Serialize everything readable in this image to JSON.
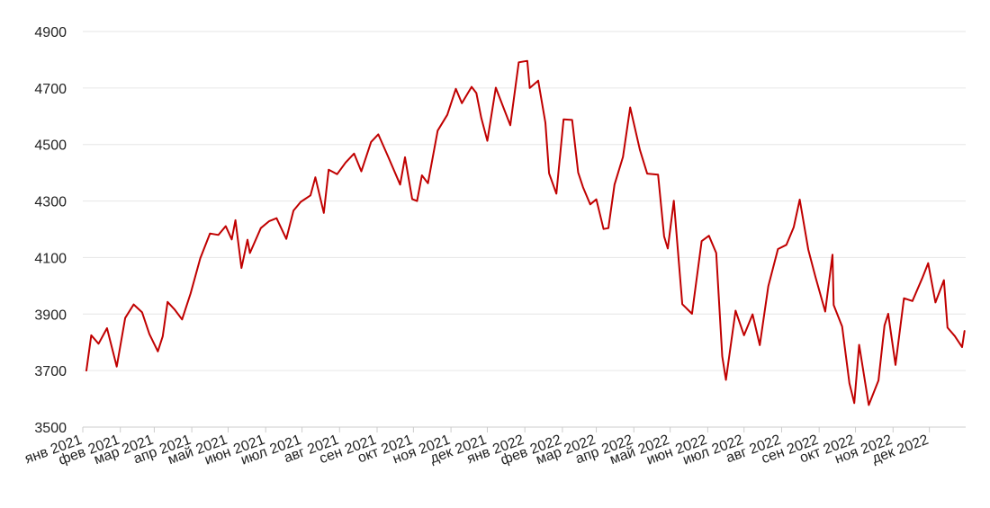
{
  "chart_data": {
    "type": "line",
    "title": "",
    "xlabel": "",
    "ylabel": "",
    "ylim": [
      3500,
      4900
    ],
    "yticks": [
      3500,
      3700,
      3900,
      4100,
      4300,
      4500,
      4700,
      4900
    ],
    "ytick_labels": [
      "3500",
      "3700",
      "3900",
      "4100",
      "4300",
      "4500",
      "4700",
      "4900"
    ],
    "xlim": [
      "2021-01-01",
      "2022-12-31"
    ],
    "xticks": [
      "2021-01-01",
      "2021-02-01",
      "2021-03-01",
      "2021-04-01",
      "2021-05-01",
      "2021-06-01",
      "2021-07-01",
      "2021-08-01",
      "2021-09-01",
      "2021-10-01",
      "2021-11-01",
      "2021-12-01",
      "2022-01-01",
      "2022-02-01",
      "2022-03-01",
      "2022-04-01",
      "2022-05-01",
      "2022-06-01",
      "2022-07-01",
      "2022-08-01",
      "2022-09-01",
      "2022-10-01",
      "2022-11-01",
      "2022-12-01"
    ],
    "xtick_labels": [
      "янв 2021",
      "фев 2021",
      "мар 2021",
      "апр 2021",
      "май 2021",
      "июн 2021",
      "июл 2021",
      "авг 2021",
      "сен 2021",
      "окт 2021",
      "ноя 2021",
      "дек 2021",
      "янв 2022",
      "фев 2022",
      "мар 2022",
      "апр 2022",
      "май 2022",
      "июн 2022",
      "июл 2022",
      "авг 2022",
      "сен 2022",
      "окт 2022",
      "ноя 2022",
      "дек 2022"
    ],
    "grid": true,
    "colors": {
      "line": "#c00000",
      "grid": "#e6e6e6",
      "axis": "#cccccc",
      "text": "#222222"
    },
    "series": [
      {
        "points": [
          [
            "2021-01-04",
            3700
          ],
          [
            "2021-01-08",
            3825
          ],
          [
            "2021-01-14",
            3795
          ],
          [
            "2021-01-21",
            3850
          ],
          [
            "2021-01-29",
            3714
          ],
          [
            "2021-02-05",
            3886
          ],
          [
            "2021-02-12",
            3934
          ],
          [
            "2021-02-19",
            3906
          ],
          [
            "2021-02-25",
            3829
          ],
          [
            "2021-03-04",
            3768
          ],
          [
            "2021-03-08",
            3821
          ],
          [
            "2021-03-12",
            3943
          ],
          [
            "2021-03-18",
            3915
          ],
          [
            "2021-03-24",
            3881
          ],
          [
            "2021-03-31",
            3973
          ],
          [
            "2021-04-08",
            4097
          ],
          [
            "2021-04-16",
            4185
          ],
          [
            "2021-04-23",
            4180
          ],
          [
            "2021-04-29",
            4211
          ],
          [
            "2021-05-04",
            4164
          ],
          [
            "2021-05-07",
            4232
          ],
          [
            "2021-05-12",
            4063
          ],
          [
            "2021-05-17",
            4163
          ],
          [
            "2021-05-19",
            4116
          ],
          [
            "2021-05-28",
            4204
          ],
          [
            "2021-06-04",
            4229
          ],
          [
            "2021-06-10",
            4239
          ],
          [
            "2021-06-18",
            4166
          ],
          [
            "2021-06-24",
            4266
          ],
          [
            "2021-06-30",
            4297
          ],
          [
            "2021-07-08",
            4320
          ],
          [
            "2021-07-12",
            4384
          ],
          [
            "2021-07-19",
            4258
          ],
          [
            "2021-07-23",
            4411
          ],
          [
            "2021-07-30",
            4395
          ],
          [
            "2021-08-06",
            4436
          ],
          [
            "2021-08-13",
            4468
          ],
          [
            "2021-08-19",
            4405
          ],
          [
            "2021-08-27",
            4509
          ],
          [
            "2021-09-02",
            4536
          ],
          [
            "2021-09-10",
            4458
          ],
          [
            "2021-09-20",
            4358
          ],
          [
            "2021-09-24",
            4455
          ],
          [
            "2021-09-30",
            4307
          ],
          [
            "2021-10-04",
            4300
          ],
          [
            "2021-10-08",
            4391
          ],
          [
            "2021-10-13",
            4363
          ],
          [
            "2021-10-21",
            4549
          ],
          [
            "2021-10-29",
            4605
          ],
          [
            "2021-11-05",
            4697
          ],
          [
            "2021-11-10",
            4646
          ],
          [
            "2021-11-18",
            4704
          ],
          [
            "2021-11-22",
            4682
          ],
          [
            "2021-11-26",
            4595
          ],
          [
            "2021-12-01",
            4513
          ],
          [
            "2021-12-08",
            4701
          ],
          [
            "2021-12-14",
            4634
          ],
          [
            "2021-12-20",
            4568
          ],
          [
            "2021-12-27",
            4791
          ],
          [
            "2022-01-03",
            4796
          ],
          [
            "2022-01-05",
            4700
          ],
          [
            "2022-01-12",
            4726
          ],
          [
            "2022-01-18",
            4577
          ],
          [
            "2022-01-21",
            4398
          ],
          [
            "2022-01-27",
            4326
          ],
          [
            "2022-02-02",
            4589
          ],
          [
            "2022-02-09",
            4587
          ],
          [
            "2022-02-14",
            4401
          ],
          [
            "2022-02-18",
            4349
          ],
          [
            "2022-02-24",
            4288
          ],
          [
            "2022-03-01",
            4306
          ],
          [
            "2022-03-07",
            4201
          ],
          [
            "2022-03-11",
            4204
          ],
          [
            "2022-03-16",
            4358
          ],
          [
            "2022-03-23",
            4456
          ],
          [
            "2022-03-29",
            4631
          ],
          [
            "2022-04-06",
            4481
          ],
          [
            "2022-04-12",
            4397
          ],
          [
            "2022-04-21",
            4393
          ],
          [
            "2022-04-26",
            4175
          ],
          [
            "2022-04-29",
            4132
          ],
          [
            "2022-05-04",
            4301
          ],
          [
            "2022-05-11",
            3935
          ],
          [
            "2022-05-19",
            3901
          ],
          [
            "2022-05-27",
            4158
          ],
          [
            "2022-06-02",
            4177
          ],
          [
            "2022-06-08",
            4116
          ],
          [
            "2022-06-13",
            3750
          ],
          [
            "2022-06-16",
            3667
          ],
          [
            "2022-06-24",
            3912
          ],
          [
            "2022-07-01",
            3825
          ],
          [
            "2022-07-08",
            3899
          ],
          [
            "2022-07-14",
            3790
          ],
          [
            "2022-07-21",
            3999
          ],
          [
            "2022-07-29",
            4130
          ],
          [
            "2022-08-05",
            4145
          ],
          [
            "2022-08-11",
            4207
          ],
          [
            "2022-08-16",
            4305
          ],
          [
            "2022-08-23",
            4128
          ],
          [
            "2022-08-29",
            4031
          ],
          [
            "2022-09-06",
            3909
          ],
          [
            "2022-09-12",
            4110
          ],
          [
            "2022-09-13",
            3932
          ],
          [
            "2022-09-20",
            3856
          ],
          [
            "2022-09-26",
            3655
          ],
          [
            "2022-09-30",
            3585
          ],
          [
            "2022-10-04",
            3791
          ],
          [
            "2022-10-12",
            3578
          ],
          [
            "2022-10-20",
            3665
          ],
          [
            "2022-10-25",
            3860
          ],
          [
            "2022-10-28",
            3901
          ],
          [
            "2022-11-03",
            3720
          ],
          [
            "2022-11-10",
            3956
          ],
          [
            "2022-11-17",
            3946
          ],
          [
            "2022-11-25",
            4026
          ],
          [
            "2022-11-30",
            4080
          ],
          [
            "2022-12-06",
            3941
          ],
          [
            "2022-12-13",
            4020
          ],
          [
            "2022-12-16",
            3852
          ],
          [
            "2022-12-22",
            3822
          ],
          [
            "2022-12-28",
            3783
          ],
          [
            "2022-12-30",
            3840
          ]
        ]
      }
    ]
  }
}
